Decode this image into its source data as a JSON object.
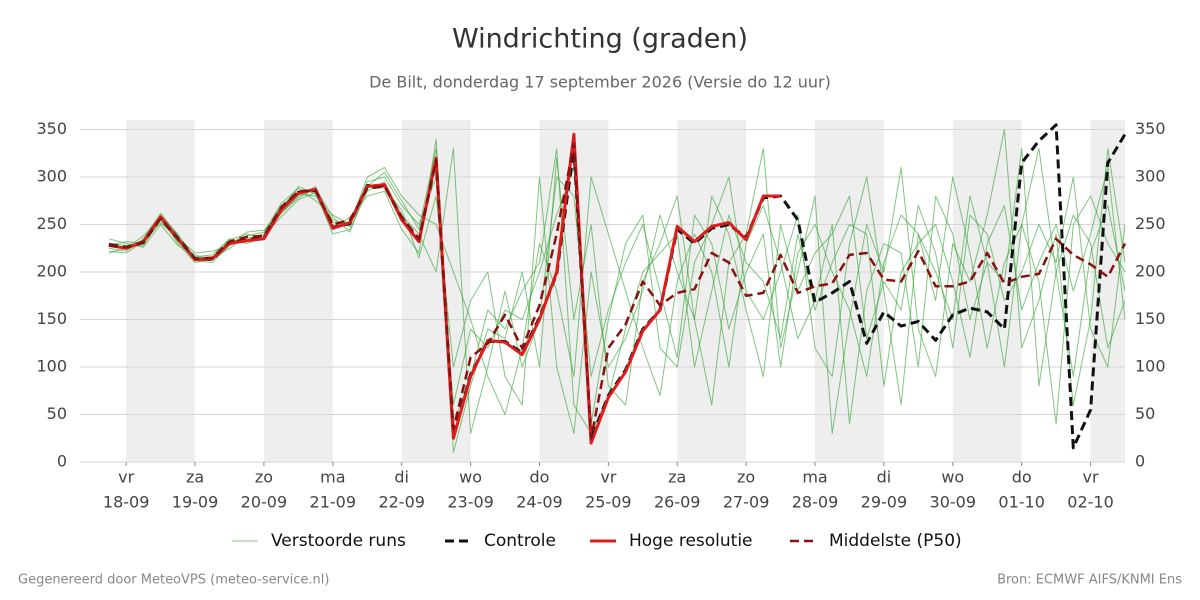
{
  "chart_data": {
    "type": "line",
    "title": "Windrichting (graden)",
    "subtitle": "De Bilt, donderdag 17 september 2026 (Versie do 12 uur)",
    "footer_left": "Gegenereerd door MeteoVPS (meteo-service.nl)",
    "footer_right": "Bron: ECMWF AIFS/KNMI Ens",
    "xlim": [
      -0.67,
      14.5
    ],
    "ylim": [
      0,
      360
    ],
    "yticks": [
      0,
      50,
      100,
      150,
      200,
      250,
      300,
      350
    ],
    "grid": true,
    "shade_alternate_days": true,
    "xticks": [
      {
        "value": 0,
        "label": "vr",
        "date": "18-09"
      },
      {
        "value": 1,
        "label": "za",
        "date": "19-09"
      },
      {
        "value": 2,
        "label": "zo",
        "date": "20-09"
      },
      {
        "value": 3,
        "label": "ma",
        "date": "21-09"
      },
      {
        "value": 4,
        "label": "di",
        "date": "22-09"
      },
      {
        "value": 5,
        "label": "wo",
        "date": "23-09"
      },
      {
        "value": 6,
        "label": "do",
        "date": "24-09"
      },
      {
        "value": 7,
        "label": "vr",
        "date": "25-09"
      },
      {
        "value": 8,
        "label": "za",
        "date": "26-09"
      },
      {
        "value": 9,
        "label": "zo",
        "date": "27-09"
      },
      {
        "value": 10,
        "label": "ma",
        "date": "28-09"
      },
      {
        "value": 11,
        "label": "di",
        "date": "29-09"
      },
      {
        "value": 12,
        "label": "wo",
        "date": "30-09"
      },
      {
        "value": 13,
        "label": "do",
        "date": "01-10"
      },
      {
        "value": 14,
        "label": "vr",
        "date": "02-10"
      }
    ],
    "x": [
      -0.25,
      0,
      0.25,
      0.5,
      0.75,
      1,
      1.25,
      1.5,
      1.75,
      2,
      2.25,
      2.5,
      2.75,
      3,
      3.25,
      3.5,
      3.75,
      4,
      4.25,
      4.5,
      4.75,
      5,
      5.25,
      5.5,
      5.75,
      6,
      6.25,
      6.5,
      6.75,
      7,
      7.25,
      7.5,
      7.75,
      8,
      8.25,
      8.5,
      8.75,
      9,
      9.25,
      9.5,
      9.75,
      10,
      10.25,
      10.5,
      10.75,
      11,
      11.25,
      11.5,
      11.75,
      12,
      12.25,
      12.5,
      12.75,
      13,
      13.25,
      13.5,
      13.75,
      14,
      14.25,
      14.5
    ],
    "series": [
      {
        "name": "Verstoorde runs",
        "color": "#2ca02c",
        "width": 1,
        "opacity": 0.6,
        "dash": false,
        "values": [
          225,
          222,
          235,
          262,
          238,
          212,
          210,
          228,
          235,
          240,
          270,
          282,
          280,
          255,
          248,
          295,
          300,
          270,
          250,
          300,
          60,
          140,
          120,
          160,
          150,
          200,
          260,
          310,
          40,
          150,
          230,
          260,
          120,
          100,
          210,
          250,
          300,
          180,
          150,
          200,
          260,
          120,
          90,
          230,
          300,
          180,
          60,
          240,
          200,
          150,
          280,
          210,
          100,
          250,
          330,
          200,
          90,
          220,
          270,
          180
        ]
      },
      {
        "name": "Verstoorde runs",
        "color": "#2ca02c",
        "width": 1,
        "opacity": 0.6,
        "dash": false,
        "values": [
          230,
          228,
          228,
          255,
          232,
          216,
          218,
          235,
          230,
          236,
          262,
          280,
          290,
          245,
          258,
          280,
          285,
          245,
          220,
          340,
          10,
          80,
          140,
          130,
          200,
          100,
          320,
          150,
          250,
          80,
          60,
          190,
          230,
          280,
          150,
          60,
          210,
          240,
          330,
          120,
          200,
          280,
          30,
          150,
          250,
          200,
          310,
          140,
          90,
          230,
          190,
          260,
          350,
          120,
          170,
          240,
          60,
          150,
          330,
          210
        ]
      },
      {
        "name": "Verstoorde runs",
        "color": "#2ca02c",
        "width": 1,
        "opacity": 0.6,
        "dash": false,
        "values": [
          220,
          225,
          238,
          258,
          230,
          210,
          214,
          225,
          238,
          242,
          272,
          288,
          275,
          260,
          250,
          300,
          310,
          280,
          260,
          250,
          200,
          150,
          90,
          50,
          120,
          230,
          180,
          90,
          300,
          240,
          180,
          120,
          70,
          190,
          240,
          200,
          100,
          230,
          270,
          210,
          130,
          170,
          250,
          40,
          180,
          230,
          220,
          100,
          280,
          240,
          150,
          210,
          190,
          330,
          80,
          200,
          260,
          230,
          120,
          170
        ]
      },
      {
        "name": "Verstoorde runs",
        "color": "#2ca02c",
        "width": 1,
        "opacity": 0.6,
        "dash": false,
        "values": [
          235,
          230,
          226,
          250,
          228,
          218,
          212,
          230,
          232,
          238,
          258,
          276,
          284,
          240,
          245,
          285,
          295,
          260,
          240,
          200,
          330,
          30,
          100,
          180,
          100,
          150,
          300,
          280,
          90,
          160,
          210,
          250,
          180,
          110,
          260,
          230,
          140,
          200,
          240,
          100,
          220,
          250,
          200,
          160,
          90,
          210,
          260,
          240,
          170,
          300,
          220,
          120,
          210,
          250,
          190,
          40,
          250,
          280,
          230,
          200
        ]
      },
      {
        "name": "Verstoorde runs",
        "color": "#2ca02c",
        "width": 1,
        "opacity": 0.6,
        "dash": false,
        "values": [
          228,
          232,
          230,
          260,
          240,
          215,
          216,
          234,
          240,
          235,
          266,
          290,
          282,
          252,
          252,
          292,
          288,
          265,
          215,
          280,
          100,
          170,
          200,
          90,
          60,
          300,
          100,
          30,
          200,
          100,
          130,
          180,
          260,
          200,
          150,
          280,
          240,
          160,
          90,
          250,
          180,
          220,
          240,
          280,
          130,
          190,
          160,
          270,
          220,
          120,
          260,
          240,
          170,
          200,
          250,
          210,
          300,
          140,
          100,
          250
        ]
      },
      {
        "name": "Verstoorde runs",
        "color": "#2ca02c",
        "width": 1,
        "opacity": 0.6,
        "dash": false,
        "values": [
          222,
          220,
          232,
          252,
          236,
          220,
          222,
          228,
          242,
          244,
          262,
          278,
          288,
          258,
          242,
          290,
          305,
          275,
          245,
          330,
          40,
          90,
          160,
          140,
          180,
          210,
          330,
          60,
          30,
          70,
          140,
          200,
          220,
          240,
          100,
          180,
          260,
          210,
          190,
          130,
          240,
          160,
          210,
          250,
          240,
          80,
          200,
          230,
          250,
          190,
          110,
          230,
          270,
          160,
          210,
          250,
          180,
          240,
          310,
          150
        ]
      },
      {
        "name": "Controle",
        "color": "#111111",
        "width": 3,
        "opacity": 1,
        "dash": true,
        "values": [
          229,
          226,
          231,
          257,
          236,
          214,
          213,
          231,
          234,
          236,
          266,
          284,
          286,
          247,
          251,
          291,
          291,
          256,
          233,
          318,
          28,
          92,
          127,
          127,
          115,
          152,
          198,
          330,
          25,
          70,
          97,
          140,
          160,
          245,
          230,
          246,
          250,
          236,
          278,
          280,
          255,
          168,
          178,
          190,
          125,
          158,
          143,
          148,
          128,
          155,
          162,
          158,
          140,
          315,
          338,
          355,
          15,
          55,
          315,
          345
        ]
      },
      {
        "name": "Hoge resolutie",
        "color": "#dd1c1c",
        "width": 3,
        "opacity": 1,
        "dash": false,
        "values": [
          228,
          225,
          232,
          258,
          235,
          213,
          214,
          230,
          233,
          235,
          265,
          283,
          287,
          246,
          252,
          290,
          292,
          255,
          232,
          320,
          25,
          90,
          128,
          126,
          113,
          150,
          200,
          345,
          20,
          68,
          95,
          138,
          160,
          248,
          232,
          248,
          252,
          234,
          280,
          280,
          null,
          null,
          null,
          null,
          null,
          null,
          null,
          null,
          null,
          null,
          null,
          null,
          null,
          null,
          null,
          null,
          null,
          null,
          null,
          null
        ]
      },
      {
        "name": "Middelste (P50)",
        "color": "#8b1010",
        "width": 2.5,
        "opacity": 1,
        "dash": true,
        "values": [
          228,
          226,
          232,
          256,
          235,
          214,
          215,
          232,
          237,
          238,
          268,
          285,
          286,
          250,
          255,
          288,
          290,
          258,
          235,
          318,
          35,
          110,
          125,
          155,
          120,
          165,
          240,
          335,
          25,
          120,
          145,
          190,
          165,
          178,
          182,
          220,
          210,
          175,
          178,
          218,
          178,
          185,
          188,
          218,
          220,
          192,
          190,
          222,
          185,
          185,
          190,
          220,
          188,
          195,
          198,
          235,
          218,
          208,
          195,
          230
        ]
      }
    ]
  }
}
